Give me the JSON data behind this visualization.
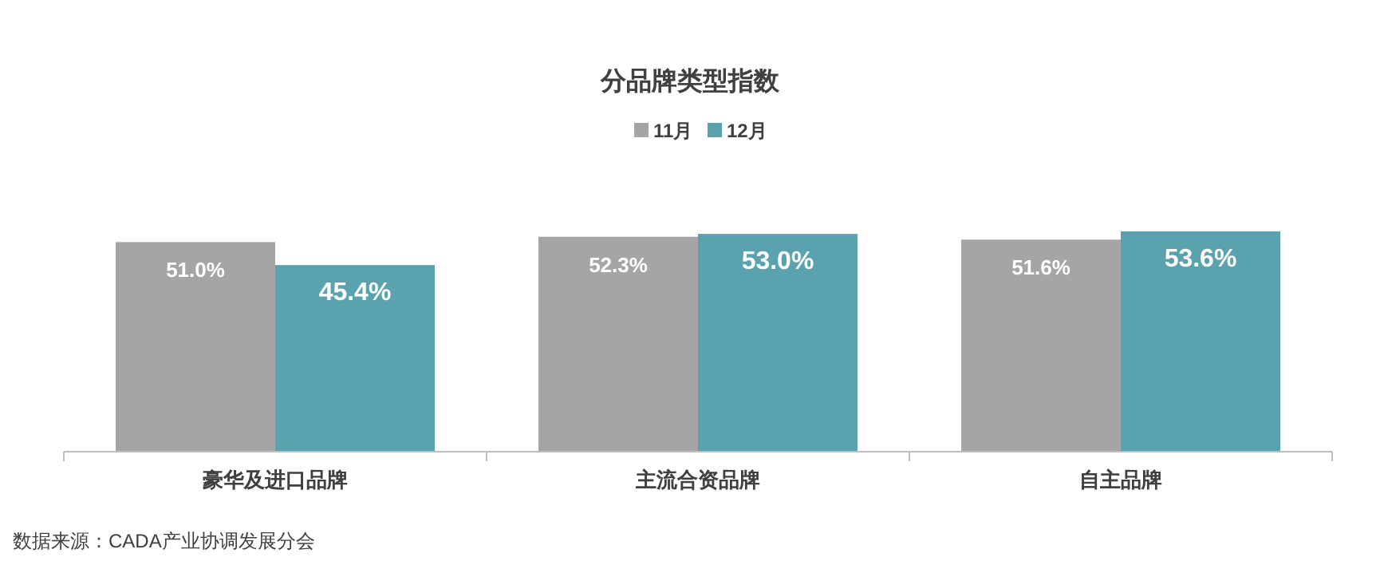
{
  "chart_data": {
    "type": "bar",
    "title": "分品牌类型指数",
    "categories": [
      "豪华及进口品牌",
      "主流合资品牌",
      "自主品牌"
    ],
    "series": [
      {
        "name": "11月",
        "color": "#a5a5a5",
        "values": [
          51.0,
          52.3,
          51.6
        ],
        "value_labels": [
          "51.0%",
          "52.3%",
          "51.6%"
        ]
      },
      {
        "name": "12月",
        "color": "#5aa2ad",
        "values": [
          45.4,
          53.0,
          53.6
        ],
        "value_labels": [
          "45.4%",
          "53.0%",
          "53.6%"
        ]
      }
    ],
    "legend": "top",
    "grid": false,
    "annotations": [
      "数据来源：CADA产业协调发展分会"
    ]
  }
}
